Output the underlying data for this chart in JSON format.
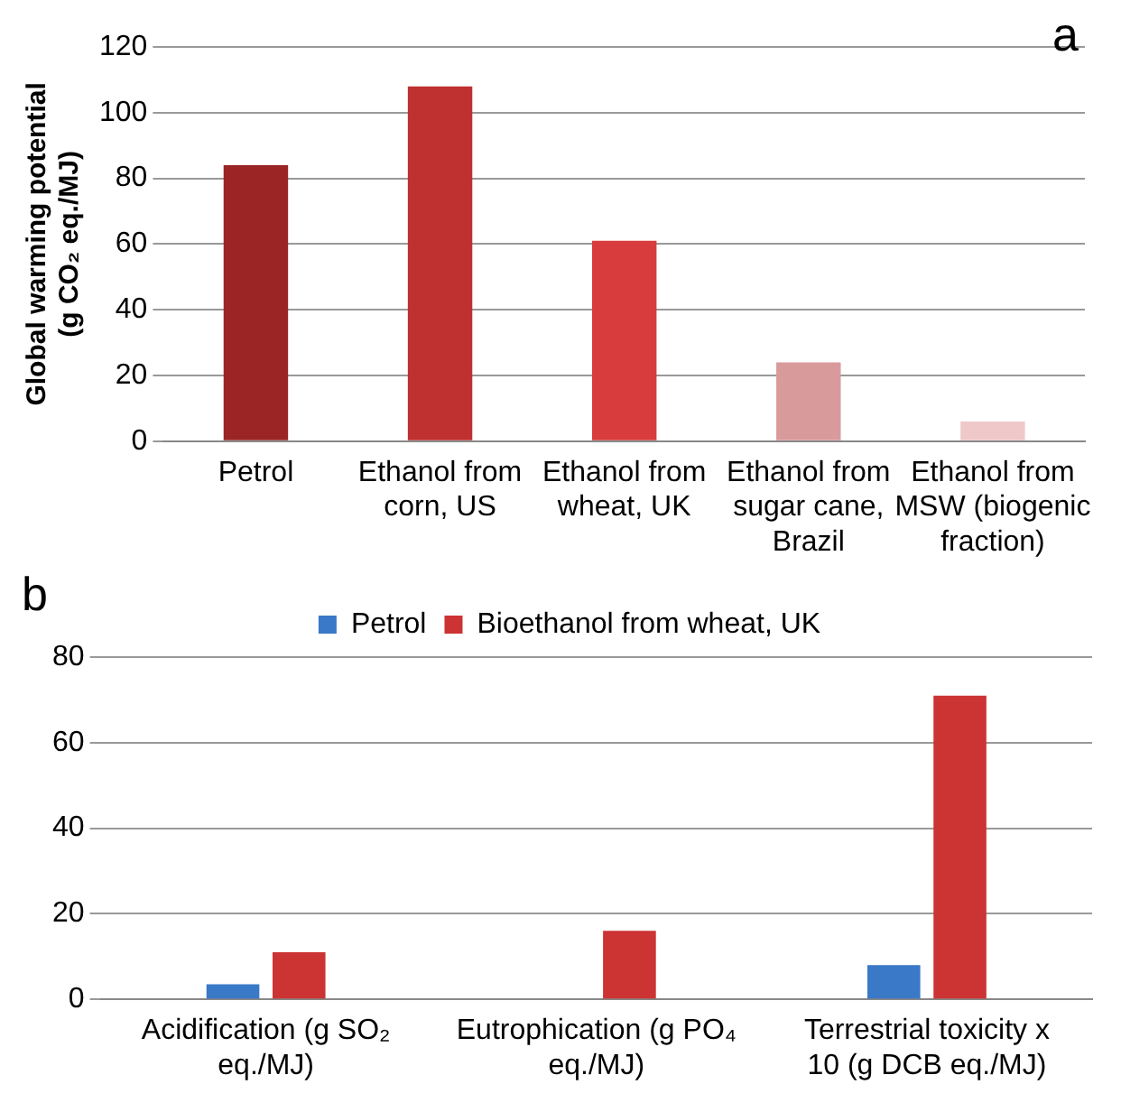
{
  "chart_data": [
    {
      "type": "bar",
      "annotations": [
        "a"
      ],
      "ylabel": "Global warming potential (g CO₂ eq./MJ)",
      "categories": [
        "Petrol",
        "Ethanol from corn, US",
        "Ethanol from wheat, UK",
        "Ethanol from sugar cane, Brazil",
        "Ethanol from MSW (biogenic fraction)"
      ],
      "values": [
        84,
        108,
        61,
        24,
        6
      ],
      "colors": [
        "#9b2525",
        "#bf3030",
        "#d83c3c",
        "#d99a9c",
        "#efc9ca"
      ],
      "ylim": [
        0,
        120
      ],
      "yticks": [
        0,
        20,
        40,
        60,
        80,
        100,
        120
      ],
      "grid": "y",
      "legend": false
    },
    {
      "type": "bar",
      "annotations": [
        "b"
      ],
      "categories": [
        "Acidification (g SO₂ eq./MJ)",
        "Eutrophication (g PO₄ eq./MJ)",
        "Terrestrial toxicity x 10 (g DCB eq./MJ)"
      ],
      "series": [
        {
          "name": "Petrol",
          "color": "#3a78c8",
          "values": [
            3.5,
            0,
            8
          ]
        },
        {
          "name": "Bioethanol from wheat, UK",
          "color": "#cc3333",
          "values": [
            11,
            16,
            71
          ]
        }
      ],
      "ylim": [
        0,
        80
      ],
      "yticks": [
        0,
        20,
        40,
        60,
        80
      ],
      "grid": "y",
      "legend": "top"
    }
  ]
}
